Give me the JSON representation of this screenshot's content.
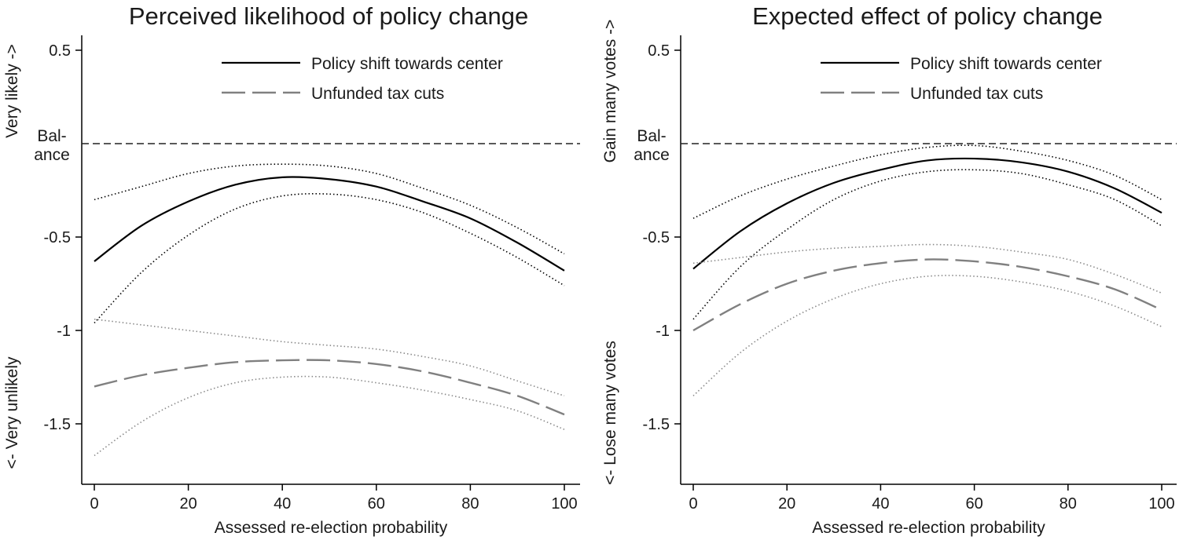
{
  "chart_data": [
    {
      "type": "line",
      "title": "Perceived likelihood of policy change",
      "xlabel": "Assessed re-election probability",
      "ylabel_top": "Very likely ->",
      "ylabel_bottom": "<- Very unlikely",
      "reference_line": {
        "y": 0,
        "label_lines": [
          "Bal-",
          "ance"
        ]
      },
      "xlim": [
        0,
        100
      ],
      "ylim": [
        -1.65,
        0.5
      ],
      "xticks": [
        0,
        20,
        40,
        60,
        80,
        100
      ],
      "xtick_labels": [
        "0",
        "20",
        "40",
        "60",
        "80",
        "100"
      ],
      "yticks": [
        0.5,
        -0.5,
        -1,
        -1.5
      ],
      "ytick_labels": [
        "0.5",
        "-0.5",
        "-1",
        "-1.5"
      ],
      "legend_position": "top-right",
      "x": [
        0,
        10,
        20,
        30,
        40,
        50,
        60,
        70,
        80,
        90,
        100
      ],
      "series": [
        {
          "name": "Policy shift towards center",
          "style": "solid",
          "color": "#000000",
          "values": [
            -0.63,
            -0.44,
            -0.31,
            -0.22,
            -0.18,
            -0.19,
            -0.23,
            -0.31,
            -0.4,
            -0.53,
            -0.68
          ],
          "ci_lower": [
            -0.96,
            -0.69,
            -0.49,
            -0.35,
            -0.28,
            -0.27,
            -0.3,
            -0.37,
            -0.48,
            -0.61,
            -0.76
          ],
          "ci_upper": [
            -0.3,
            -0.23,
            -0.16,
            -0.12,
            -0.11,
            -0.12,
            -0.16,
            -0.24,
            -0.33,
            -0.45,
            -0.59
          ]
        },
        {
          "name": "Unfunded tax cuts",
          "style": "dashed",
          "color": "#808080",
          "values": [
            -1.3,
            -1.24,
            -1.2,
            -1.17,
            -1.16,
            -1.16,
            -1.18,
            -1.22,
            -1.28,
            -1.35,
            -1.45
          ],
          "ci_lower": [
            -1.67,
            -1.49,
            -1.36,
            -1.28,
            -1.25,
            -1.25,
            -1.28,
            -1.32,
            -1.37,
            -1.43,
            -1.53
          ],
          "ci_upper": [
            -0.94,
            -0.97,
            -1.0,
            -1.03,
            -1.06,
            -1.08,
            -1.1,
            -1.14,
            -1.19,
            -1.27,
            -1.35
          ]
        }
      ]
    },
    {
      "type": "line",
      "title": "Expected effect of policy change",
      "xlabel": "Assessed re-election probability",
      "ylabel_top": "Gain many votes ->",
      "ylabel_bottom": "<- Lose many votes",
      "reference_line": {
        "y": 0,
        "label_lines": [
          "Bal-",
          "ance"
        ]
      },
      "xlim": [
        0,
        100
      ],
      "ylim": [
        -1.65,
        0.5
      ],
      "xticks": [
        0,
        20,
        40,
        60,
        80,
        100
      ],
      "xtick_labels": [
        "0",
        "20",
        "40",
        "60",
        "80",
        "100"
      ],
      "yticks": [
        0.5,
        -0.5,
        -1,
        -1.5
      ],
      "ytick_labels": [
        "0.5",
        "-0.5",
        "-1",
        "-1.5"
      ],
      "legend_position": "top-right",
      "x": [
        0,
        10,
        20,
        30,
        40,
        50,
        60,
        70,
        80,
        90,
        100
      ],
      "series": [
        {
          "name": "Policy shift towards center",
          "style": "solid",
          "color": "#000000",
          "values": [
            -0.67,
            -0.47,
            -0.32,
            -0.21,
            -0.14,
            -0.09,
            -0.08,
            -0.1,
            -0.15,
            -0.24,
            -0.37
          ],
          "ci_lower": [
            -0.94,
            -0.66,
            -0.46,
            -0.3,
            -0.2,
            -0.15,
            -0.14,
            -0.16,
            -0.22,
            -0.3,
            -0.44
          ],
          "ci_upper": [
            -0.4,
            -0.28,
            -0.19,
            -0.12,
            -0.06,
            -0.02,
            -0.01,
            -0.04,
            -0.09,
            -0.17,
            -0.3
          ]
        },
        {
          "name": "Unfunded tax cuts",
          "style": "dashed",
          "color": "#808080",
          "values": [
            -1.0,
            -0.86,
            -0.75,
            -0.68,
            -0.64,
            -0.62,
            -0.63,
            -0.66,
            -0.71,
            -0.78,
            -0.89
          ],
          "ci_lower": [
            -1.35,
            -1.12,
            -0.95,
            -0.83,
            -0.75,
            -0.71,
            -0.71,
            -0.74,
            -0.79,
            -0.87,
            -0.98
          ],
          "ci_upper": [
            -0.64,
            -0.61,
            -0.58,
            -0.56,
            -0.55,
            -0.54,
            -0.55,
            -0.58,
            -0.62,
            -0.7,
            -0.8
          ]
        }
      ]
    }
  ]
}
